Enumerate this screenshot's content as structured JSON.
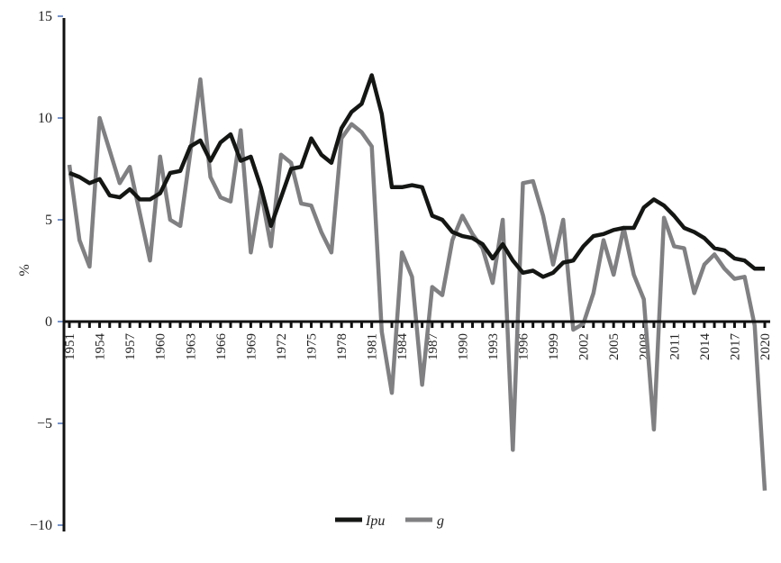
{
  "chart_data": {
    "type": "line",
    "title": "",
    "xlabel": "",
    "ylabel": "%",
    "ylim": [
      -10,
      15
    ],
    "yticks": [
      15,
      10,
      5,
      0,
      -5,
      -10
    ],
    "ytick_labels": [
      "15",
      "10",
      "5",
      "0",
      "−5",
      "−10"
    ],
    "x_start": 1951,
    "x_end": 2020,
    "xtick_labels": [
      "1951",
      "1954",
      "1957",
      "1960",
      "1963",
      "1966",
      "1969",
      "1972",
      "1975",
      "1978",
      "1981",
      "1984",
      "1987",
      "1990",
      "1993",
      "1996",
      "1999",
      "2002",
      "2005",
      "2008",
      "2011",
      "2014",
      "2017",
      "2020"
    ],
    "legend_position": "bottom",
    "series": [
      {
        "name": "Ipu",
        "color": "#141614",
        "values": [
          7.3,
          7.1,
          6.8,
          7.0,
          6.2,
          6.1,
          6.5,
          6.0,
          6.0,
          6.3,
          7.3,
          7.4,
          8.6,
          8.9,
          7.9,
          8.8,
          9.2,
          7.9,
          8.1,
          6.6,
          4.7,
          6.1,
          7.5,
          7.6,
          9.0,
          8.2,
          7.8,
          9.5,
          10.3,
          10.7,
          12.1,
          10.2,
          6.6,
          6.6,
          6.7,
          6.6,
          5.2,
          5.0,
          4.4,
          4.2,
          4.1,
          3.8,
          3.1,
          3.8,
          3.0,
          2.4,
          2.5,
          2.2,
          2.4,
          2.9,
          3.0,
          3.7,
          4.2,
          4.3,
          4.5,
          4.6,
          4.6,
          5.6,
          6.0,
          5.7,
          5.2,
          4.6,
          4.4,
          4.1,
          3.6,
          3.5,
          3.1,
          3.0,
          2.6,
          2.6
        ]
      },
      {
        "name": "g",
        "color": "#808083",
        "values": [
          7.7,
          4.0,
          2.7,
          10.0,
          8.4,
          6.8,
          7.6,
          5.3,
          3.0,
          8.1,
          5.0,
          4.7,
          8.3,
          11.9,
          7.1,
          6.1,
          5.9,
          9.4,
          3.4,
          6.4,
          3.7,
          8.2,
          7.8,
          5.8,
          5.7,
          4.4,
          3.4,
          9.0,
          9.7,
          9.3,
          8.6,
          -0.5,
          -3.5,
          3.4,
          2.2,
          -3.1,
          1.7,
          1.3,
          4.0,
          5.2,
          4.3,
          3.6,
          1.9,
          5.0,
          -6.3,
          6.8,
          6.9,
          5.2,
          2.8,
          5.0,
          -0.4,
          -0.1,
          1.4,
          4.0,
          2.3,
          4.6,
          2.3,
          1.1,
          -5.3,
          5.1,
          3.7,
          3.6,
          1.4,
          2.8,
          3.3,
          2.6,
          2.1,
          2.2,
          -0.2,
          -8.3
        ]
      }
    ]
  }
}
